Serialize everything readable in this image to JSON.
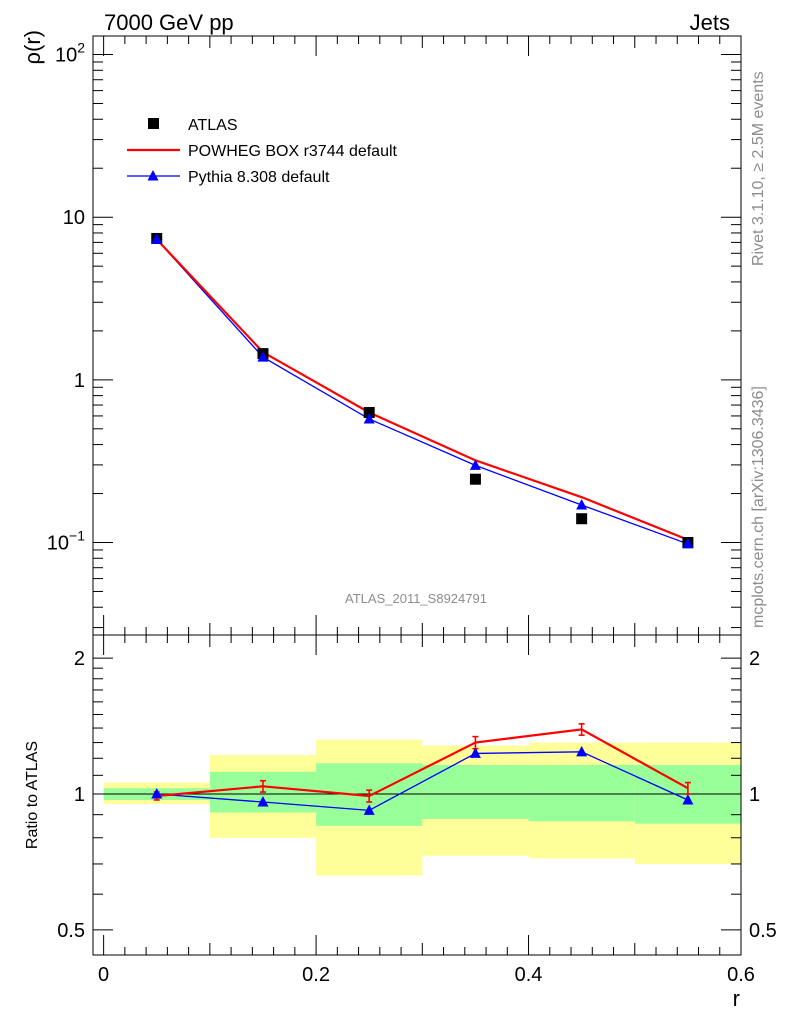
{
  "header": {
    "left": "7000 GeV pp",
    "right": "Jets"
  },
  "side_text": {
    "rivet": "Rivet 3.1.10, ≥ 2.5M events",
    "mcplots": "mcplots.cern.ch [arXiv:1306.3436]"
  },
  "watermark": "ATLAS_2011_S8924791",
  "colors": {
    "data": "#000000",
    "powheg": "#ff0000",
    "pythia": "#0000ff",
    "band_inner": "#99ff99",
    "band_outer": "#ffff99"
  },
  "chart_data": [
    {
      "type": "scatter",
      "panel": "main",
      "ylabel": "ρ(r)",
      "yscale": "log",
      "ylim": [
        0.027,
        130
      ],
      "xlim": [
        -0.01,
        0.6
      ],
      "y_tick_labels": [
        "10^-1",
        "1",
        "10",
        "10^2"
      ],
      "legend": {
        "placement": "top-left",
        "entries": [
          "ATLAS",
          "POWHEG BOX r3744 default",
          "Pythia 8.308 default"
        ]
      },
      "x": [
        0.05,
        0.15,
        0.25,
        0.35,
        0.45,
        0.55
      ],
      "series": [
        {
          "name": "ATLAS",
          "style": "markers",
          "values": [
            7.4,
            1.45,
            0.63,
            0.245,
            0.14,
            0.1
          ]
        },
        {
          "name": "POWHEG BOX r3744 default",
          "style": "line",
          "values": [
            7.3,
            1.48,
            0.63,
            0.32,
            0.19,
            0.104
          ]
        },
        {
          "name": "Pythia 8.308 default",
          "style": "line-triangles",
          "values": [
            7.3,
            1.38,
            0.575,
            0.298,
            0.17,
            0.098
          ]
        }
      ]
    },
    {
      "type": "line",
      "panel": "ratio",
      "ylabel": "Ratio to ATLAS",
      "xlabel": "r",
      "ylim": [
        0.44,
        2.25
      ],
      "xlim": [
        -0.01,
        0.6
      ],
      "y_tick_labels": [
        "0.5",
        "1",
        "2"
      ],
      "x_tick_labels": [
        "0",
        "0.2",
        "0.4",
        "0.6"
      ],
      "x": [
        0.05,
        0.15,
        0.25,
        0.35,
        0.45,
        0.55
      ],
      "bins": [
        [
          0.0,
          0.1
        ],
        [
          0.1,
          0.2
        ],
        [
          0.2,
          0.3
        ],
        [
          0.3,
          0.4
        ],
        [
          0.4,
          0.5
        ],
        [
          0.5,
          0.6
        ]
      ],
      "band_inner": [
        [
          0.97,
          1.03
        ],
        [
          0.91,
          1.12
        ],
        [
          0.85,
          1.17
        ],
        [
          0.88,
          1.16
        ],
        [
          0.87,
          1.16
        ],
        [
          0.86,
          1.16
        ]
      ],
      "band_outer": [
        [
          0.95,
          1.06
        ],
        [
          0.8,
          1.22
        ],
        [
          0.66,
          1.32
        ],
        [
          0.73,
          1.28
        ],
        [
          0.72,
          1.3
        ],
        [
          0.7,
          1.3
        ]
      ],
      "series": [
        {
          "name": "POWHEG BOX r3744 default",
          "values": [
            0.99,
            1.04,
            0.99,
            1.3,
            1.39,
            1.03
          ],
          "errors": [
            0.02,
            0.03,
            0.03,
            0.04,
            0.04,
            0.03
          ]
        },
        {
          "name": "Pythia 8.308 default",
          "values": [
            1.0,
            0.96,
            0.92,
            1.23,
            1.24,
            0.97
          ]
        }
      ]
    }
  ]
}
